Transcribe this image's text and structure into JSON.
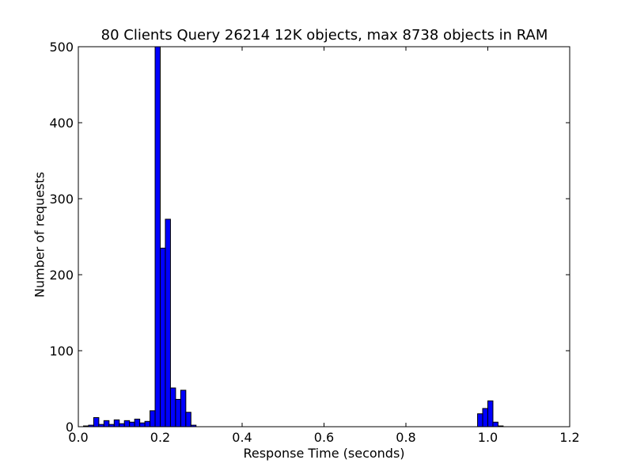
{
  "chart_data": {
    "type": "bar",
    "title": "80 Clients Query 26214 12K objects, max 8738 objects in RAM",
    "xlabel": "Response Time (seconds)",
    "ylabel": "Number of requests",
    "xlim": [
      0.0,
      1.2
    ],
    "ylim": [
      0,
      500
    ],
    "xticks": [
      "0.0",
      "0.2",
      "0.4",
      "0.6",
      "0.8",
      "1.0",
      "1.2"
    ],
    "yticks": [
      "0",
      "100",
      "200",
      "300",
      "400",
      "500"
    ],
    "grid": false,
    "legend": "none",
    "bar_color": "#0000ff",
    "bin_width": 0.0125,
    "bins": [
      {
        "x": 0.0125,
        "value": 1
      },
      {
        "x": 0.025,
        "value": 2
      },
      {
        "x": 0.0375,
        "value": 12
      },
      {
        "x": 0.05,
        "value": 3
      },
      {
        "x": 0.0625,
        "value": 8
      },
      {
        "x": 0.075,
        "value": 3
      },
      {
        "x": 0.0875,
        "value": 9
      },
      {
        "x": 0.1,
        "value": 4
      },
      {
        "x": 0.1125,
        "value": 8
      },
      {
        "x": 0.125,
        "value": 6
      },
      {
        "x": 0.1375,
        "value": 10
      },
      {
        "x": 0.15,
        "value": 5
      },
      {
        "x": 0.1625,
        "value": 7
      },
      {
        "x": 0.175,
        "value": 21
      },
      {
        "x": 0.1875,
        "value": 500
      },
      {
        "x": 0.2,
        "value": 235
      },
      {
        "x": 0.2125,
        "value": 273
      },
      {
        "x": 0.225,
        "value": 51
      },
      {
        "x": 0.2375,
        "value": 36
      },
      {
        "x": 0.25,
        "value": 48
      },
      {
        "x": 0.2625,
        "value": 19
      },
      {
        "x": 0.275,
        "value": 2
      },
      {
        "x": 0.975,
        "value": 17
      },
      {
        "x": 0.9875,
        "value": 24
      },
      {
        "x": 1.0,
        "value": 34
      },
      {
        "x": 1.0125,
        "value": 6
      },
      {
        "x": 1.025,
        "value": 1
      }
    ]
  }
}
